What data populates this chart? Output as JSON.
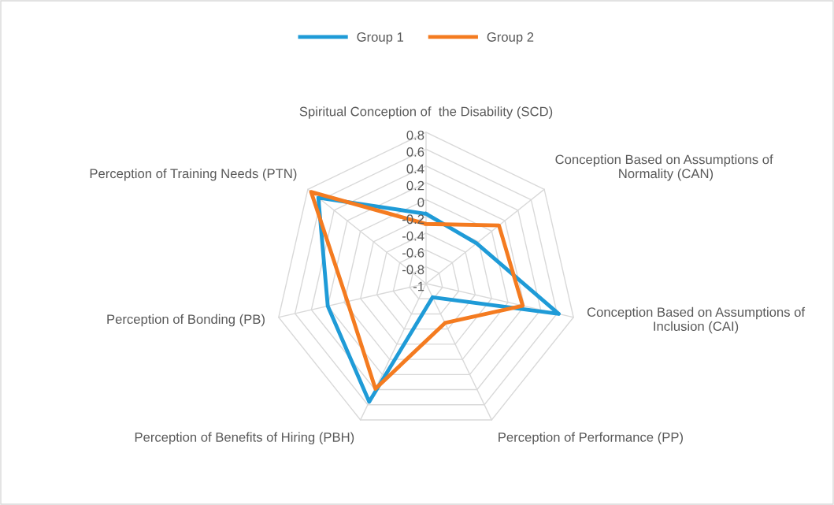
{
  "chart_data": {
    "type": "radar",
    "categories": [
      "Spiritual Conception of  the Disability (SCD)",
      "Conception Based on Assumptions of  Normality (CAN)",
      "Conception Based on Assumptions of Inclusion (CAI)",
      "Perception of Performance (PP)",
      "Perception of Benefits of Hiring (PBH)",
      "Perception of Bonding (PB)",
      "Perception of Training Needs (PTN)"
    ],
    "series": [
      {
        "name": "Group 1",
        "color": "#1f9bd7",
        "values": [
          -0.17,
          -0.23,
          0.62,
          -0.82,
          0.56,
          0.2,
          0.64
        ]
      },
      {
        "name": "Group 2",
        "color": "#f47b20",
        "values": [
          -0.29,
          0.11,
          0.18,
          -0.48,
          0.39,
          -0.04,
          0.75
        ]
      }
    ],
    "ylim": [
      -1,
      0.8
    ],
    "yticks": [
      -1,
      -0.8,
      -0.6,
      -0.4,
      -0.2,
      0,
      0.2,
      0.4,
      0.6,
      0.8
    ],
    "grid": true,
    "legend": "top",
    "marker": "none",
    "line_style": "solid"
  }
}
